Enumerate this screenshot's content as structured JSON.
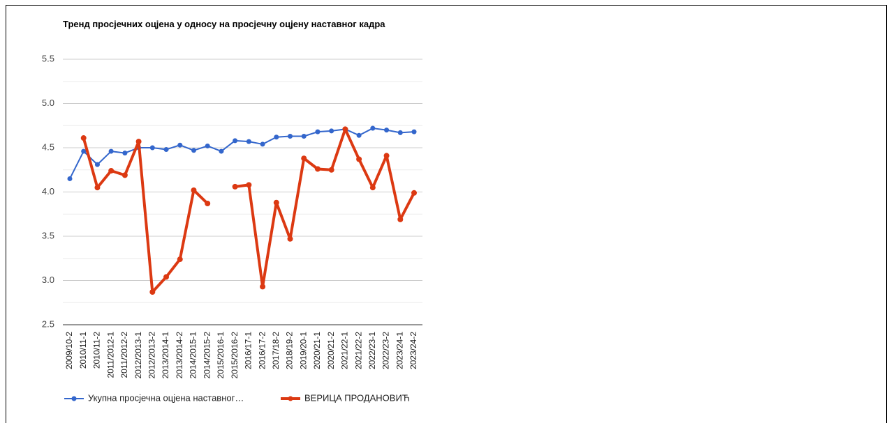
{
  "chart_data": {
    "type": "line",
    "title": "Тренд просјечних оцјена у односу на просјечну оцјену наставног кадра",
    "categories": [
      "2009/10-2",
      "2010/11-1",
      "2010/11-2",
      "2011/2012-1",
      "2011/2012-2",
      "2012/2013-1",
      "2012/2013-2",
      "2013/2014-1",
      "2013/2014-2",
      "2014/2015-1",
      "2014/2015-2",
      "2015/2016-1",
      "2015/2016-2",
      "2016/17-1",
      "2016/17-2",
      "2017/18-2",
      "2018/19-2",
      "2019/20-1",
      "2020/21-1",
      "2020/21-2",
      "2021/22-1",
      "2021/22-2",
      "2022/23-1",
      "2022/23-2",
      "2023/24-1",
      "2023/24-2"
    ],
    "series": [
      {
        "name": "Укупна просјечна оцјена наставног…",
        "color": "#3366cc",
        "values": [
          4.15,
          4.46,
          4.31,
          4.46,
          4.44,
          4.5,
          4.5,
          4.48,
          4.53,
          4.47,
          4.52,
          4.46,
          4.58,
          4.57,
          4.54,
          4.62,
          4.63,
          4.63,
          4.68,
          4.69,
          4.71,
          4.64,
          4.72,
          4.7,
          4.67,
          4.68
        ]
      },
      {
        "name": "ВЕРИЦА ПРОДАНОВИЋ",
        "color": "#dc3912",
        "values": [
          null,
          4.61,
          4.05,
          4.24,
          4.19,
          4.57,
          2.87,
          3.04,
          3.24,
          4.02,
          3.87,
          null,
          4.06,
          4.08,
          2.93,
          3.88,
          3.47,
          4.38,
          4.26,
          4.25,
          4.71,
          4.37,
          4.05,
          4.41,
          3.69,
          3.99
        ]
      }
    ],
    "ylim": [
      2.5,
      5.5
    ],
    "yticks": [
      2.5,
      {
        "value": 3,
        "label": "3.0"
      },
      3.5,
      {
        "value": 4,
        "label": "4.0"
      },
      4.5,
      {
        "value": 5,
        "label": "5.0"
      },
      5.5
    ],
    "grid": true,
    "legend": "bottom"
  }
}
